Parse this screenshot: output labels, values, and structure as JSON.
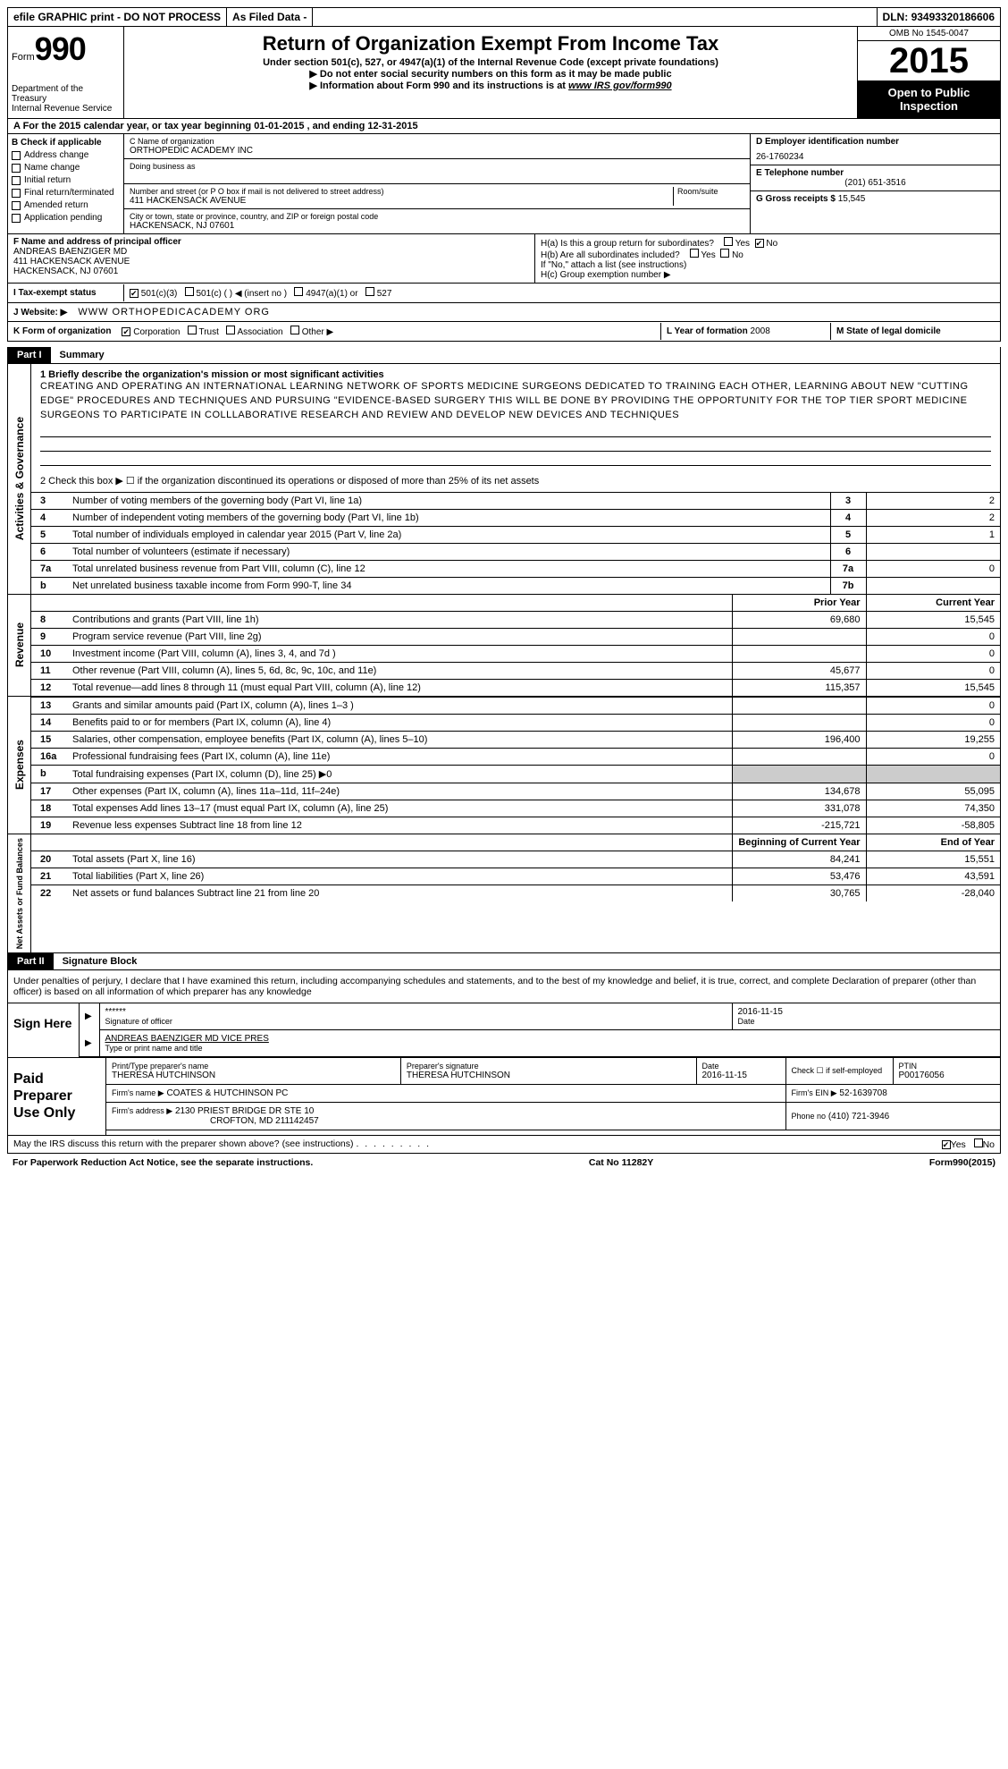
{
  "top": {
    "efile": "efile GRAPHIC print - DO NOT PROCESS",
    "asfiled": "As Filed Data -",
    "dln_label": "DLN:",
    "dln": "93493320186606"
  },
  "header": {
    "form_label": "Form",
    "form_num": "990",
    "dept": "Department of the Treasury",
    "irs": "Internal Revenue Service",
    "title": "Return of Organization Exempt From Income Tax",
    "sub1": "Under section 501(c), 527, or 4947(a)(1) of the Internal Revenue Code (except private foundations)",
    "sub2": "▶ Do not enter social security numbers on this form as it may be made public",
    "sub3a": "▶ Information about Form 990 and its instructions is at ",
    "sub3b": "www IRS gov/form990",
    "omb": "OMB No 1545-0047",
    "year": "2015",
    "open": "Open to Public Inspection"
  },
  "rowA": "A  For the 2015 calendar year, or tax year beginning 01-01-2015    , and ending 12-31-2015",
  "boxB": {
    "label": "B  Check if applicable",
    "items": [
      "Address change",
      "Name change",
      "Initial return",
      "Final return/terminated",
      "Amended return",
      "Application pending"
    ]
  },
  "boxC": {
    "name_label": "C  Name of organization",
    "name": "ORTHOPEDIC ACADEMY INC",
    "dba_label": "Doing business as",
    "street_label": "Number and street (or P O  box if mail is not delivered to street address)",
    "room_label": "Room/suite",
    "street": "411 HACKENSACK AVENUE",
    "city_label": "City or town, state or province, country, and ZIP or foreign postal code",
    "city": "HACKENSACK, NJ  07601"
  },
  "boxD": {
    "label": "D Employer identification number",
    "val": "26-1760234"
  },
  "boxE": {
    "label": "E Telephone number",
    "val": "(201) 651-3516"
  },
  "boxG": {
    "label": "G Gross receipts $",
    "val": "15,545"
  },
  "boxF": {
    "label": "F  Name and address of principal officer",
    "name": "ANDREAS BAENZIGER MD",
    "street": "411 HACKENSACK AVENUE",
    "city": "HACKENSACK, NJ  07601"
  },
  "boxH": {
    "a1": "H(a)  Is this a group return for subordinates?",
    "a1_no": "No",
    "yes": "Yes",
    "no_chk": "No",
    "b1": "H(b)  Are all subordinates included?",
    "b2": "If \"No,\" attach a list  (see instructions)",
    "c1": "H(c)  Group exemption number ▶"
  },
  "rowI": {
    "label": "I  Tax-exempt status",
    "opts": [
      "501(c)(3)",
      "501(c) (  ) ◀ (insert no )",
      "4947(a)(1) or",
      "527"
    ]
  },
  "rowJ": {
    "label": "J  Website: ▶",
    "val": "WWW ORTHOPEDICACADEMY ORG"
  },
  "rowK": {
    "label": "K Form of organization",
    "opts": [
      "Corporation",
      "Trust",
      "Association",
      "Other ▶"
    ]
  },
  "rowL": {
    "label": "L Year of formation",
    "val": "2008"
  },
  "rowM": {
    "label": "M State of legal domicile"
  },
  "part1": {
    "tag": "Part I",
    "title": "Summary",
    "l1": "1 Briefly describe the organization's mission or most significant activities",
    "mission": "CREATING AND OPERATING AN INTERNATIONAL LEARNING NETWORK OF SPORTS MEDICINE SURGEONS DEDICATED TO TRAINING EACH OTHER, LEARNING ABOUT NEW \"CUTTING EDGE\" PROCEDURES AND TECHNIQUES AND PURSUING \"EVIDENCE-BASED SURGERY  THIS WILL BE DONE BY PROVIDING THE OPPORTUNITY FOR THE TOP TIER SPORT MEDICINE SURGEONS TO PARTICIPATE IN COLLLABORATIVE RESEARCH AND REVIEW AND DEVELOP NEW DEVICES AND TECHNIQUES",
    "l2": "2  Check this box ▶ ☐ if the organization discontinued its operations or disposed of more than 25% of its net assets",
    "side1": "Activities & Governance",
    "side2": "Revenue",
    "side3": "Expenses",
    "side4": "Net Assets or Fund Balances",
    "rows_gov": [
      {
        "idx": "3",
        "label": "Number of voting members of the governing body (Part VI, line 1a)",
        "num": "3",
        "val": "2"
      },
      {
        "idx": "4",
        "label": "Number of independent voting members of the governing body (Part VI, line 1b)",
        "num": "4",
        "val": "2"
      },
      {
        "idx": "5",
        "label": "Total number of individuals employed in calendar year 2015 (Part V, line 2a)",
        "num": "5",
        "val": "1"
      },
      {
        "idx": "6",
        "label": "Total number of volunteers (estimate if necessary)",
        "num": "6",
        "val": ""
      },
      {
        "idx": "7a",
        "label": "Total unrelated business revenue from Part VIII, column (C), line 12",
        "num": "7a",
        "val": "0"
      },
      {
        "idx": "b",
        "label": "Net unrelated business taxable income from Form 990-T, line 34",
        "num": "7b",
        "val": ""
      }
    ],
    "head_prior": "Prior Year",
    "head_curr": "Current Year",
    "rows_rev": [
      {
        "idx": "8",
        "label": "Contributions and grants (Part VIII, line 1h)",
        "p": "69,680",
        "c": "15,545"
      },
      {
        "idx": "9",
        "label": "Program service revenue (Part VIII, line 2g)",
        "p": "",
        "c": "0"
      },
      {
        "idx": "10",
        "label": "Investment income (Part VIII, column (A), lines 3, 4, and 7d )",
        "p": "",
        "c": "0"
      },
      {
        "idx": "11",
        "label": "Other revenue (Part VIII, column (A), lines 5, 6d, 8c, 9c, 10c, and 11e)",
        "p": "45,677",
        "c": "0"
      },
      {
        "idx": "12",
        "label": "Total revenue—add lines 8 through 11 (must equal Part VIII, column (A), line 12)",
        "p": "115,357",
        "c": "15,545"
      }
    ],
    "rows_exp": [
      {
        "idx": "13",
        "label": "Grants and similar amounts paid (Part IX, column (A), lines 1–3 )",
        "p": "",
        "c": "0"
      },
      {
        "idx": "14",
        "label": "Benefits paid to or for members (Part IX, column (A), line 4)",
        "p": "",
        "c": "0"
      },
      {
        "idx": "15",
        "label": "Salaries, other compensation, employee benefits (Part IX, column (A), lines 5–10)",
        "p": "196,400",
        "c": "19,255"
      },
      {
        "idx": "16a",
        "label": "Professional fundraising fees (Part IX, column (A), line 11e)",
        "p": "",
        "c": "0"
      },
      {
        "idx": "b",
        "label": "Total fundraising expenses (Part IX, column (D), line 25) ▶0",
        "p": "—",
        "c": "—"
      },
      {
        "idx": "17",
        "label": "Other expenses (Part IX, column (A), lines 11a–11d, 11f–24e)",
        "p": "134,678",
        "c": "55,095"
      },
      {
        "idx": "18",
        "label": "Total expenses  Add lines 13–17 (must equal Part IX, column (A), line 25)",
        "p": "331,078",
        "c": "74,350"
      },
      {
        "idx": "19",
        "label": "Revenue less expenses  Subtract line 18 from line 12",
        "p": "-215,721",
        "c": "-58,805"
      }
    ],
    "head_boy": "Beginning of Current Year",
    "head_eoy": "End of Year",
    "rows_net": [
      {
        "idx": "20",
        "label": "Total assets (Part X, line 16)",
        "p": "84,241",
        "c": "15,551"
      },
      {
        "idx": "21",
        "label": "Total liabilities (Part X, line 26)",
        "p": "53,476",
        "c": "43,591"
      },
      {
        "idx": "22",
        "label": "Net assets or fund balances  Subtract line 21 from line 20",
        "p": "30,765",
        "c": "-28,040"
      }
    ]
  },
  "part2": {
    "tag": "Part II",
    "title": "Signature Block",
    "decl": "Under penalties of perjury, I declare that I have examined this return, including accompanying schedules and statements, and to the best of my knowledge and belief, it is true, correct, and complete  Declaration of preparer (other than officer) is based on all information of which preparer has any knowledge",
    "sign_here": "Sign Here",
    "sig_stars": "******",
    "sig_label": "Signature of officer",
    "sig_date": "2016-11-15",
    "date_label": "Date",
    "officer": "ANDREAS BAENZIGER MD VICE PRES",
    "officer_label": "Type or print name and title",
    "paid": "Paid Preparer Use Only",
    "prep_name_label": "Print/Type preparer's name",
    "prep_name": "THERESA HUTCHINSON",
    "prep_sig_label": "Preparer's signature",
    "prep_sig": "THERESA HUTCHINSON",
    "prep_date": "2016-11-15",
    "check_se": "Check ☐ if self-employed",
    "ptin_label": "PTIN",
    "ptin": "P00176056",
    "firm_name_label": "Firm's name    ▶",
    "firm_name": "COATES & HUTCHINSON PC",
    "firm_ein_label": "Firm's EIN ▶",
    "firm_ein": "52-1639708",
    "firm_addr_label": "Firm's address ▶",
    "firm_addr": "2130 PRIEST BRIDGE DR STE 10",
    "firm_city": "CROFTON, MD  211142457",
    "firm_phone_label": "Phone no",
    "firm_phone": "(410) 721-3946",
    "discuss": "May the IRS discuss this return with the preparer shown above? (see instructions)",
    "yes": "Yes",
    "no": "No"
  },
  "footer": {
    "pra": "For Paperwork Reduction Act Notice, see the separate instructions.",
    "cat": "Cat No  11282Y",
    "form": "Form 990 (2015)"
  }
}
